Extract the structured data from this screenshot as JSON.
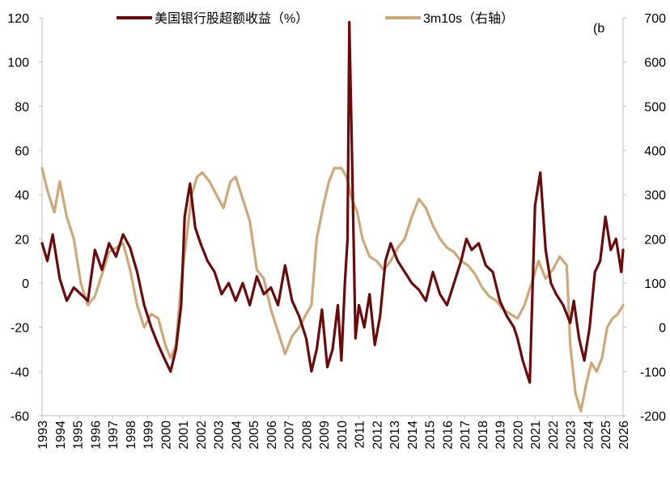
{
  "chart_data": {
    "type": "line",
    "title": "",
    "xlabel": "",
    "ylabel": "",
    "y2label_partial": "(b",
    "ylim": [
      -60,
      120
    ],
    "y2lim": [
      -200,
      700
    ],
    "xlim": [
      1993,
      2026
    ],
    "legend": "top-center",
    "grid": false,
    "y_ticks": [
      "120",
      "100",
      "80",
      "60",
      "40",
      "20",
      "0",
      "-20",
      "-40",
      "-60"
    ],
    "y2_ticks": [
      "700",
      "600",
      "500",
      "400",
      "300",
      "200",
      "100",
      "0",
      "-100",
      "-200"
    ],
    "x_ticks": [
      "1993",
      "1994",
      "1995",
      "1996",
      "1997",
      "1998",
      "1999",
      "2000",
      "2001",
      "2002",
      "2003",
      "2004",
      "2005",
      "2006",
      "2007",
      "2008",
      "2009",
      "2010",
      "2011",
      "2012",
      "2013",
      "2014",
      "2015",
      "2016",
      "2017",
      "2018",
      "2019",
      "2020",
      "2021",
      "2022",
      "2023",
      "2024",
      "2025",
      "2026"
    ],
    "series": [
      {
        "name": "美国银行股超额收益（%）",
        "axis": "left",
        "color": "#6b0a0a",
        "x": [
          1993.0,
          1993.3,
          1993.6,
          1994.0,
          1994.4,
          1994.8,
          1995.2,
          1995.6,
          1996.0,
          1996.4,
          1996.8,
          1997.2,
          1997.6,
          1998.0,
          1998.4,
          1998.8,
          1999.2,
          1999.6,
          2000.0,
          2000.3,
          2000.6,
          2000.9,
          2001.1,
          2001.4,
          2001.7,
          2002.0,
          2002.4,
          2002.8,
          2003.2,
          2003.6,
          2004.0,
          2004.4,
          2004.8,
          2005.2,
          2005.6,
          2006.0,
          2006.4,
          2006.8,
          2007.2,
          2007.6,
          2008.0,
          2008.3,
          2008.6,
          2008.9,
          2009.2,
          2009.5,
          2009.8,
          2010.0,
          2010.2,
          2010.35,
          2010.45,
          2010.6,
          2010.8,
          2011.0,
          2011.3,
          2011.6,
          2011.9,
          2012.2,
          2012.5,
          2012.8,
          2013.2,
          2013.6,
          2014.0,
          2014.4,
          2014.8,
          2015.2,
          2015.6,
          2016.0,
          2016.4,
          2016.8,
          2017.1,
          2017.4,
          2017.8,
          2018.2,
          2018.6,
          2019.0,
          2019.4,
          2019.8,
          2020.0,
          2020.3,
          2020.7,
          2021.0,
          2021.3,
          2021.6,
          2021.9,
          2022.2,
          2022.6,
          2023.0,
          2023.2,
          2023.5,
          2023.8,
          2024.1,
          2024.4,
          2024.7,
          2025.0,
          2025.3,
          2025.6,
          2025.9,
          2026.0
        ],
        "values": [
          18,
          10,
          22,
          2,
          -8,
          -2,
          -5,
          -8,
          15,
          6,
          18,
          12,
          22,
          16,
          5,
          -10,
          -20,
          -28,
          -35,
          -40,
          -30,
          -10,
          30,
          45,
          25,
          18,
          10,
          5,
          -5,
          0,
          -8,
          0,
          -10,
          3,
          -5,
          -2,
          -10,
          8,
          -8,
          -15,
          -25,
          -40,
          -30,
          -12,
          -38,
          -30,
          -10,
          -35,
          0,
          20,
          118,
          60,
          -25,
          -10,
          -20,
          -5,
          -28,
          -15,
          10,
          18,
          10,
          5,
          0,
          -3,
          -8,
          5,
          -5,
          -10,
          0,
          10,
          20,
          15,
          18,
          8,
          5,
          -8,
          -15,
          -20,
          -25,
          -35,
          -45,
          35,
          50,
          15,
          0,
          -5,
          -10,
          -18,
          -8,
          -25,
          -35,
          -20,
          5,
          10,
          30,
          15,
          20,
          5,
          15
        ]
      },
      {
        "name": "3m10s（右轴）",
        "axis": "right",
        "color": "#cfa87a",
        "x": [
          1993.0,
          1993.3,
          1993.7,
          1994.0,
          1994.4,
          1994.8,
          1995.2,
          1995.6,
          1996.0,
          1996.4,
          1996.8,
          1997.2,
          1997.6,
          1998.0,
          1998.4,
          1998.8,
          1999.2,
          1999.6,
          2000.0,
          2000.3,
          2000.6,
          2000.9,
          2001.2,
          2001.5,
          2001.8,
          2002.1,
          2002.5,
          2002.9,
          2003.3,
          2003.7,
          2004.0,
          2004.4,
          2004.8,
          2005.2,
          2005.6,
          2006.0,
          2006.4,
          2006.8,
          2007.2,
          2007.6,
          2008.0,
          2008.3,
          2008.6,
          2009.0,
          2009.3,
          2009.6,
          2010.0,
          2010.3,
          2010.6,
          2010.9,
          2011.2,
          2011.6,
          2012.0,
          2012.4,
          2012.8,
          2013.2,
          2013.6,
          2014.0,
          2014.4,
          2014.8,
          2015.2,
          2015.6,
          2016.0,
          2016.4,
          2016.8,
          2017.2,
          2017.6,
          2018.0,
          2018.4,
          2018.8,
          2019.2,
          2019.6,
          2020.0,
          2020.4,
          2020.8,
          2021.2,
          2021.6,
          2022.0,
          2022.4,
          2022.8,
          2023.0,
          2023.3,
          2023.6,
          2023.9,
          2024.2,
          2024.5,
          2024.8,
          2025.1,
          2025.4,
          2025.7,
          2026.0
        ],
        "values": [
          360,
          310,
          260,
          330,
          250,
          200,
          100,
          50,
          70,
          120,
          170,
          180,
          190,
          130,
          50,
          0,
          30,
          20,
          -40,
          -70,
          -40,
          100,
          200,
          300,
          340,
          350,
          330,
          300,
          270,
          330,
          340,
          290,
          240,
          130,
          110,
          40,
          -10,
          -60,
          -20,
          0,
          30,
          50,
          200,
          280,
          330,
          360,
          360,
          340,
          290,
          260,
          200,
          160,
          150,
          130,
          150,
          180,
          200,
          250,
          290,
          270,
          230,
          200,
          180,
          170,
          150,
          140,
          120,
          90,
          70,
          60,
          40,
          30,
          20,
          50,
          100,
          150,
          110,
          130,
          160,
          140,
          -40,
          -150,
          -190,
          -130,
          -80,
          -100,
          -70,
          0,
          20,
          30,
          50
        ]
      }
    ]
  }
}
